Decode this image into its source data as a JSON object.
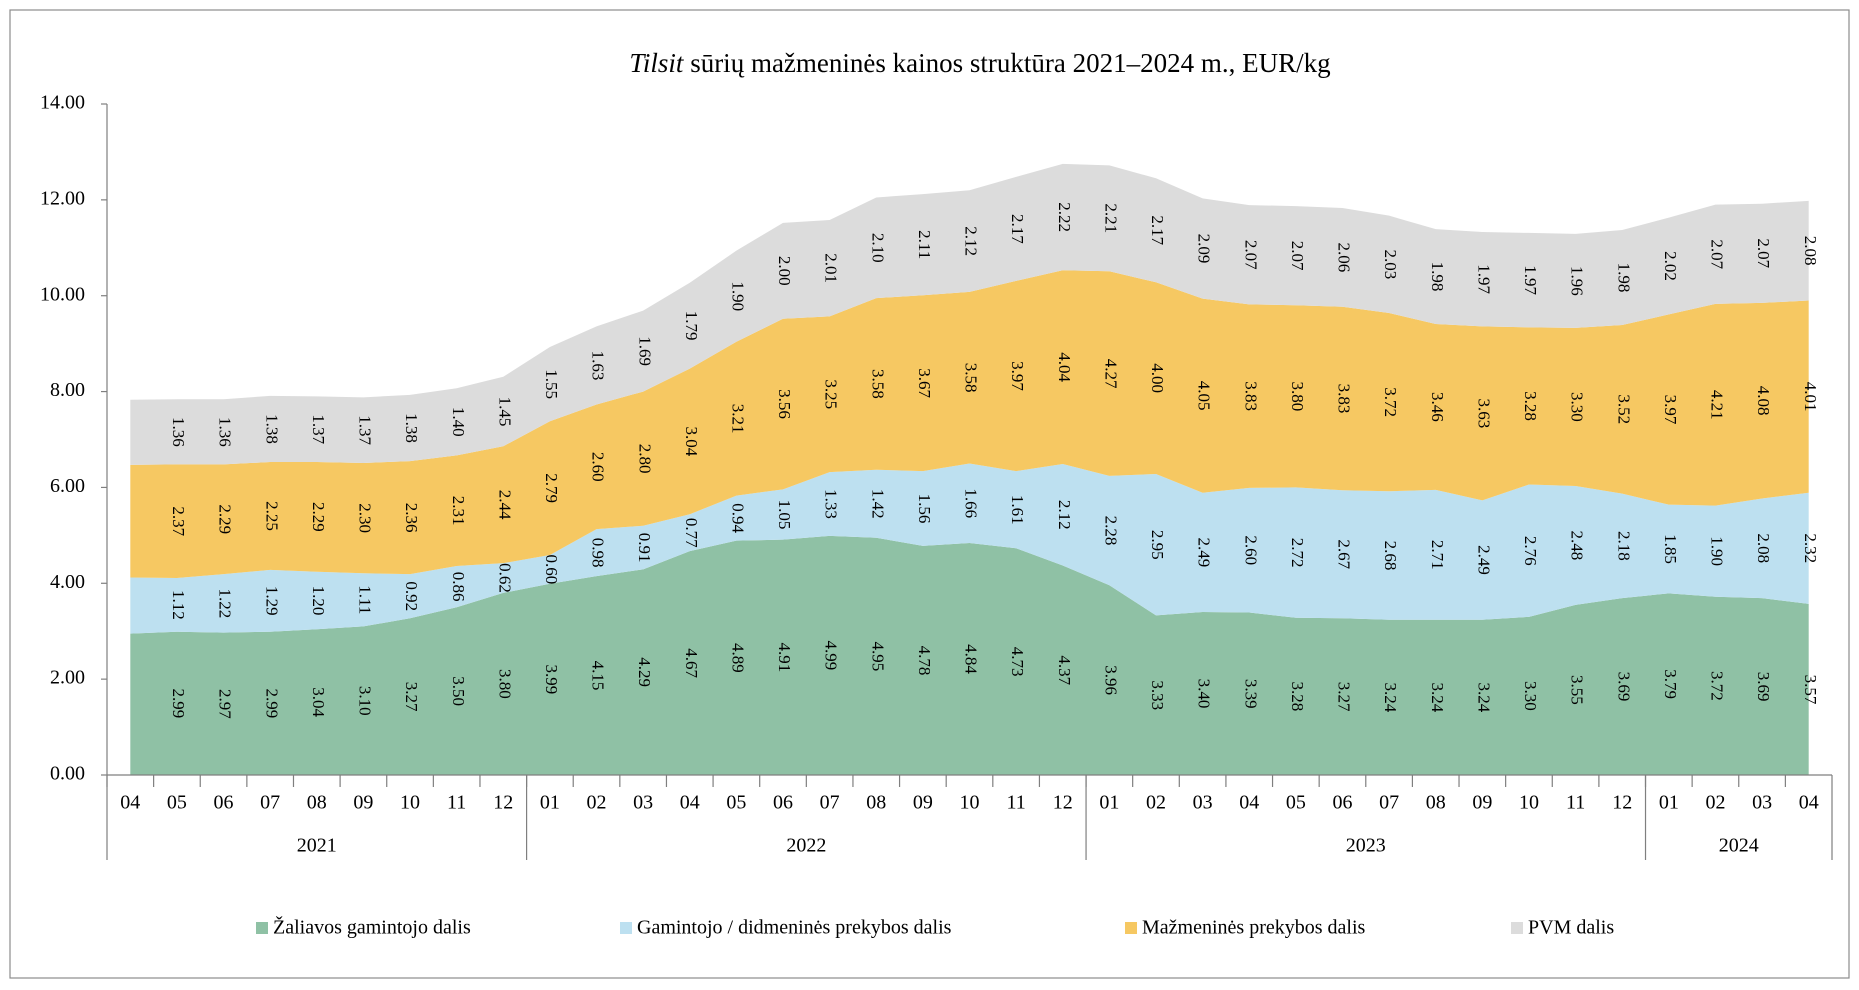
{
  "chart_data": {
    "type": "stacked_area",
    "title": {
      "italic": "Tilsit",
      "rest": "sūrių mažmeninės kainos struktūra 2021–2024 m., EUR/kg"
    },
    "groups": [
      {
        "year": "2021",
        "months": [
          "04",
          "05",
          "06",
          "07",
          "08",
          "09",
          "10",
          "11",
          "12"
        ]
      },
      {
        "year": "2022",
        "months": [
          "01",
          "02",
          "03",
          "04",
          "05",
          "06",
          "07",
          "08",
          "09",
          "10",
          "11",
          "12"
        ]
      },
      {
        "year": "2023",
        "months": [
          "01",
          "02",
          "03",
          "04",
          "05",
          "06",
          "07",
          "08",
          "09",
          "10",
          "11",
          "12"
        ]
      },
      {
        "year": "2024",
        "months": [
          "01",
          "02",
          "03",
          "04"
        ]
      }
    ],
    "ylim": [
      0,
      14
    ],
    "yticks": [
      {
        "value": 0,
        "label": "0.00"
      },
      {
        "value": 2,
        "label": "2.00"
      },
      {
        "value": 4,
        "label": "4.00"
      },
      {
        "value": 6,
        "label": "6.00"
      },
      {
        "value": 8,
        "label": "8.00"
      },
      {
        "value": 10,
        "label": "10.00"
      },
      {
        "value": 12,
        "label": "12.00"
      },
      {
        "value": 14,
        "label": "14.00"
      }
    ],
    "series": [
      {
        "name": "Žaliavos gamintojo dalis",
        "color": "#8fc1a5",
        "values": [
          2.95,
          2.99,
          2.97,
          2.99,
          3.04,
          3.1,
          3.27,
          3.5,
          3.8,
          3.99,
          4.15,
          4.29,
          4.67,
          4.89,
          4.91,
          4.99,
          4.95,
          4.78,
          4.84,
          4.73,
          4.37,
          3.96,
          3.33,
          3.4,
          3.39,
          3.28,
          3.27,
          3.24,
          3.24,
          3.24,
          3.3,
          3.55,
          3.69,
          3.79,
          3.72,
          3.69,
          3.57
        ],
        "value_labels": [
          null,
          "2.99",
          "2.97",
          "2.99",
          "3.04",
          "3.10",
          "3.27",
          "3.50",
          "3.80",
          "3.99",
          "4.15",
          "4.29",
          "4.67",
          "4.89",
          "4.91",
          "4.99",
          "4.95",
          "4.78",
          "4.84",
          "4.73",
          "4.37",
          "3.96",
          "3.33",
          "3.40",
          "3.39",
          "3.28",
          "3.27",
          "3.24",
          "3.24",
          "3.24",
          "3.30",
          "3.55",
          "3.69",
          "3.79",
          "3.72",
          "3.69",
          "3.57"
        ]
      },
      {
        "name": "Gamintojo / didmeninės prekybos dalis",
        "color": "#bde0f0",
        "values": [
          1.17,
          1.12,
          1.22,
          1.29,
          1.2,
          1.11,
          0.92,
          0.86,
          0.62,
          0.6,
          0.98,
          0.91,
          0.77,
          0.94,
          1.05,
          1.33,
          1.42,
          1.56,
          1.66,
          1.61,
          2.12,
          2.28,
          2.95,
          2.49,
          2.6,
          2.72,
          2.67,
          2.68,
          2.71,
          2.49,
          2.76,
          2.48,
          2.18,
          1.85,
          1.9,
          2.08,
          2.32
        ],
        "value_labels": [
          null,
          "1.12",
          "1.22",
          "1.29",
          "1.20",
          "1.11",
          "0.92",
          "0.86",
          "0.62",
          "0.60",
          "0.98",
          "0.91",
          "0.77",
          "0.94",
          "1.05",
          "1.33",
          "1.42",
          "1.56",
          "1.66",
          "1.61",
          "2.12",
          "2.28",
          "2.95",
          "2.49",
          "2.60",
          "2.72",
          "2.67",
          "2.68",
          "2.71",
          "2.49",
          "2.76",
          "2.48",
          "2.18",
          "1.85",
          "1.90",
          "2.08",
          "2.32"
        ]
      },
      {
        "name": "Mažmeninės prekybos dalis",
        "color": "#f6c862",
        "values": [
          2.35,
          2.37,
          2.29,
          2.25,
          2.29,
          2.3,
          2.36,
          2.31,
          2.44,
          2.79,
          2.6,
          2.8,
          3.04,
          3.21,
          3.56,
          3.25,
          3.58,
          3.67,
          3.58,
          3.97,
          4.04,
          4.27,
          4.0,
          4.05,
          3.83,
          3.8,
          3.83,
          3.72,
          3.46,
          3.63,
          3.28,
          3.3,
          3.52,
          3.97,
          4.21,
          4.08,
          4.01
        ],
        "value_labels": [
          null,
          "2.37",
          "2.29",
          "2.25",
          "2.29",
          "2.30",
          "2.36",
          "2.31",
          "2.44",
          "2.79",
          "2.60",
          "2.80",
          "3.04",
          "3.21",
          "3.56",
          "3.25",
          "3.58",
          "3.67",
          "3.58",
          "3.97",
          "4.04",
          "4.27",
          "4.00",
          "4.05",
          "3.83",
          "3.80",
          "3.83",
          "3.72",
          "3.46",
          "3.63",
          "3.28",
          "3.30",
          "3.52",
          "3.97",
          "4.21",
          "4.08",
          "4.01"
        ]
      },
      {
        "name": "PVM dalis",
        "color": "#dcdcdc",
        "values": [
          1.36,
          1.36,
          1.36,
          1.38,
          1.37,
          1.37,
          1.38,
          1.4,
          1.45,
          1.55,
          1.63,
          1.69,
          1.79,
          1.9,
          2.0,
          2.01,
          2.1,
          2.11,
          2.12,
          2.17,
          2.22,
          2.21,
          2.17,
          2.09,
          2.07,
          2.07,
          2.06,
          2.03,
          1.98,
          1.97,
          1.97,
          1.96,
          1.98,
          2.02,
          2.07,
          2.07,
          2.08
        ],
        "value_labels": [
          null,
          "1.36",
          "1.36",
          "1.38",
          "1.37",
          "1.37",
          "1.38",
          "1.40",
          "1.45",
          "1.55",
          "1.63",
          "1.69",
          "1.79",
          "1.90",
          "2.00",
          "2.01",
          "2.10",
          "2.11",
          "2.12",
          "2.17",
          "2.22",
          "2.21",
          "2.17",
          "2.09",
          "2.07",
          "2.07",
          "2.06",
          "2.03",
          "1.98",
          "1.97",
          "1.97",
          "1.96",
          "1.98",
          "2.02",
          "2.07",
          "2.07",
          "2.08"
        ]
      }
    ]
  }
}
